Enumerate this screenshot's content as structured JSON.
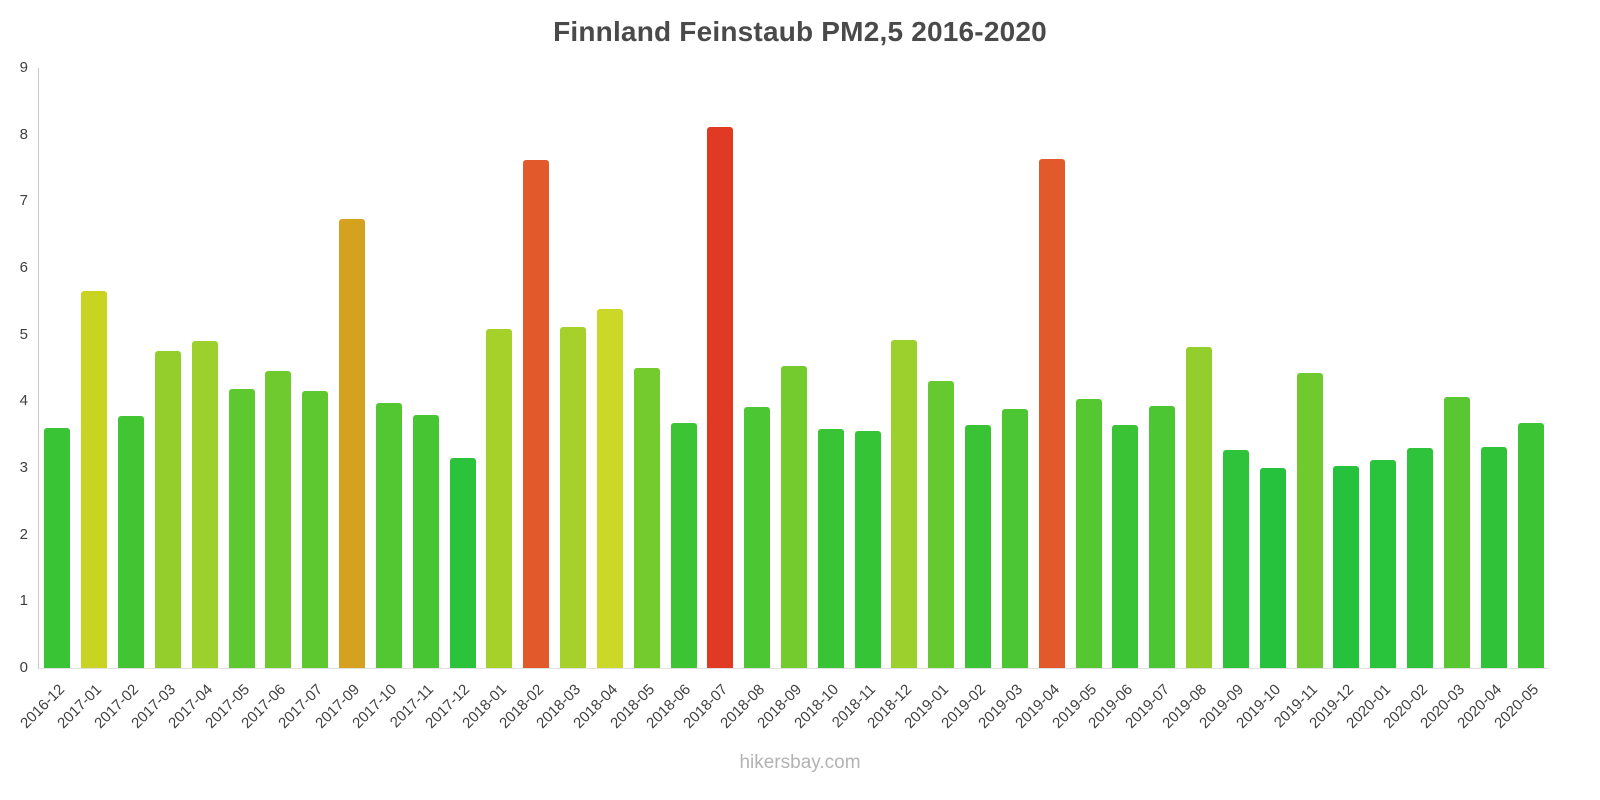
{
  "chart_data": {
    "type": "bar",
    "title": "Finnland Feinstaub PM2,5 2016-2020",
    "xlabel": "",
    "ylabel": "",
    "ylim": [
      0,
      9
    ],
    "yticks": [
      0,
      1,
      2,
      3,
      4,
      5,
      6,
      7,
      8,
      9
    ],
    "grid": false,
    "legend": false,
    "categories": [
      "2016-12",
      "2017-01",
      "2017-02",
      "2017-03",
      "2017-04",
      "2017-05",
      "2017-06",
      "2017-07",
      "2017-09",
      "2017-10",
      "2017-11",
      "2017-12",
      "2018-01",
      "2018-02",
      "2018-03",
      "2018-04",
      "2018-05",
      "2018-06",
      "2018-07",
      "2018-08",
      "2018-09",
      "2018-10",
      "2018-11",
      "2018-12",
      "2019-01",
      "2019-02",
      "2019-03",
      "2019-04",
      "2019-05",
      "2019-06",
      "2019-07",
      "2019-08",
      "2019-09",
      "2019-10",
      "2019-11",
      "2019-12",
      "2020-01",
      "2020-02",
      "2020-03",
      "2020-04",
      "2020-05"
    ],
    "values": [
      3.6,
      5.65,
      3.78,
      4.75,
      4.9,
      4.18,
      4.45,
      4.15,
      6.73,
      3.98,
      3.8,
      3.15,
      5.08,
      7.62,
      5.12,
      5.38,
      4.5,
      3.68,
      8.12,
      3.92,
      4.53,
      3.58,
      3.55,
      4.92,
      4.3,
      3.65,
      3.88,
      7.63,
      4.03,
      3.65,
      3.93,
      4.82,
      3.27,
      3.0,
      4.42,
      3.03,
      3.12,
      3.3,
      4.07,
      3.32,
      3.67
    ],
    "colors": [
      "#38c435",
      "#c9d321",
      "#43c533",
      "#93ce2d",
      "#9cd02c",
      "#5ec830",
      "#6eca2f",
      "#5ec830",
      "#d4a21e",
      "#52c731",
      "#47c532",
      "#2ac33b",
      "#a6d12b",
      "#e25a2b",
      "#a6d12b",
      "#ccd827",
      "#74cb2e",
      "#3cc434",
      "#e03a24",
      "#4cc632",
      "#74cb2e",
      "#38c435",
      "#35c436",
      "#9cd02c",
      "#66c930",
      "#3ac435",
      "#4cc632",
      "#e25a2b",
      "#55c731",
      "#3ac435",
      "#4cc632",
      "#93ce2d",
      "#2ec33a",
      "#27c23d",
      "#6eca2f",
      "#27c23d",
      "#2ac33c",
      "#2ec33a",
      "#58c731",
      "#30c339",
      "#3cc434"
    ],
    "axis_color": "#c9c9c9",
    "tick_label_color": "#3f3f3f",
    "title_color": "#4a4a4a"
  },
  "footer": {
    "text": "hikersbay.com"
  }
}
